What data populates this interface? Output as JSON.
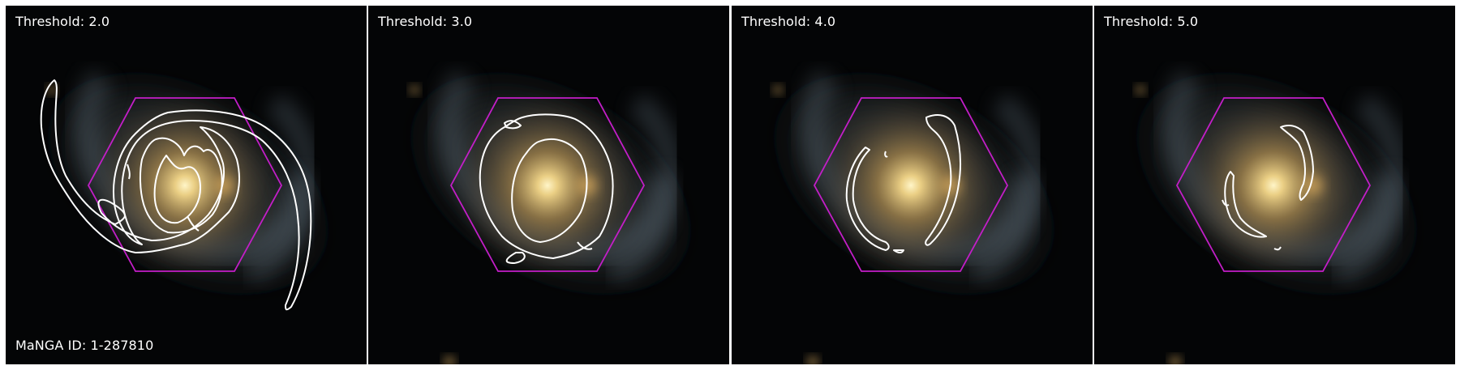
{
  "panels": [
    {
      "label": "Threshold: 2.0"
    },
    {
      "label": "Threshold: 3.0"
    },
    {
      "label": "Threshold: 4.0"
    },
    {
      "label": "Threshold: 5.0"
    }
  ],
  "galaxy_id_label": "MaNGA ID: 1-287810",
  "colors": {
    "hexagon": "#c31ec8",
    "contour": "#ffffff",
    "background": "#000000"
  }
}
